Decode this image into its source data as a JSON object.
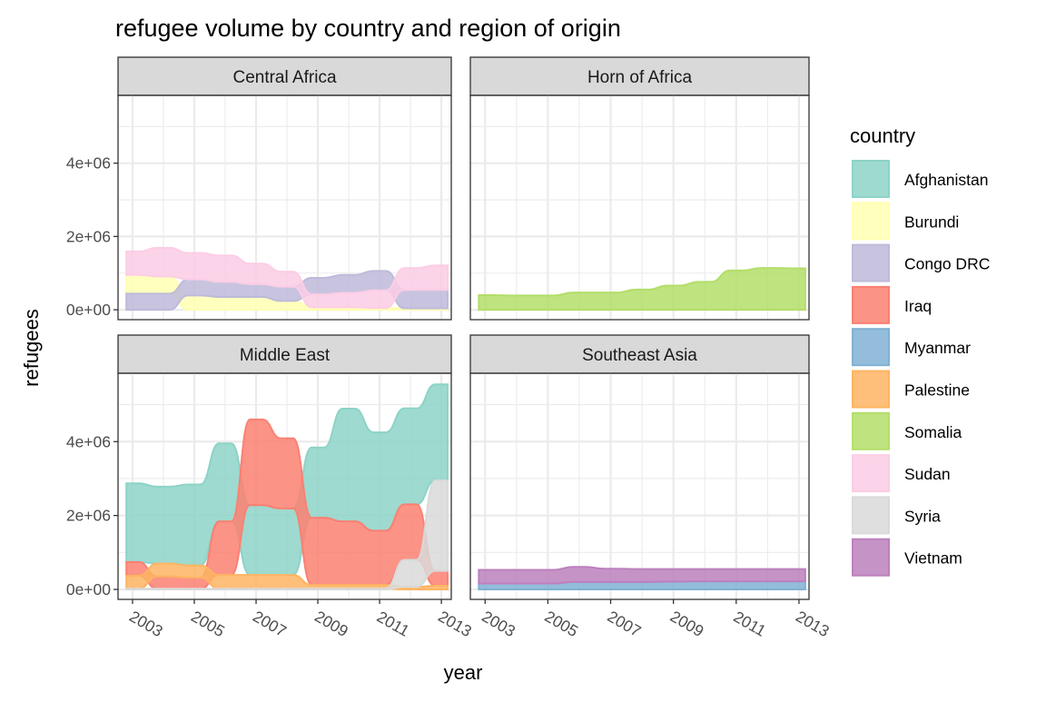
{
  "chart_data": {
    "type": "area",
    "subtype": "alluvial stream",
    "title": "refugee volume by country and region of origin",
    "xlabel": "year",
    "ylabel": "refugees",
    "x": [
      2003,
      2004,
      2005,
      2006,
      2007,
      2008,
      2009,
      2010,
      2011,
      2012,
      2013
    ],
    "x_ticks": [
      "2003",
      "2005",
      "2007",
      "2009",
      "2011",
      "2013"
    ],
    "y_ticks": [
      "0e+00",
      "2e+06",
      "4e+06"
    ],
    "y_tick_values": [
      0,
      2000000,
      4000000
    ],
    "ylim": [
      -270000,
      5850000
    ],
    "xlim": [
      2002.53,
      2013.32
    ],
    "grid": true,
    "legend": {
      "title": "country",
      "position": "right",
      "entries": [
        {
          "name": "Afghanistan",
          "color": "#8dd3c7"
        },
        {
          "name": "Burundi",
          "color": "#ffffb3"
        },
        {
          "name": "Congo DRC",
          "color": "#bebada"
        },
        {
          "name": "Iraq",
          "color": "#fb8072"
        },
        {
          "name": "Myanmar",
          "color": "#80b1d3"
        },
        {
          "name": "Palestine",
          "color": "#fdb462"
        },
        {
          "name": "Somalia",
          "color": "#b3de69"
        },
        {
          "name": "Sudan",
          "color": "#fccde5"
        },
        {
          "name": "Syria",
          "color": "#d9d9d9"
        },
        {
          "name": "Vietnam",
          "color": "#bc80bd"
        }
      ]
    },
    "facets": [
      {
        "label": "Central Africa",
        "series": [
          {
            "name": "Burundi",
            "values": [
              510000,
              470000,
              390000,
              350000,
              350000,
              240000,
              70000,
              70000,
              50000,
              40000,
              40000
            ]
          },
          {
            "name": "Congo DRC",
            "values": [
              440000,
              440000,
              440000,
              410000,
              350000,
              390000,
              450000,
              490000,
              530000,
              500000,
              500000
            ]
          },
          {
            "name": "Sudan",
            "values": [
              640000,
              780000,
              720000,
              720000,
              560000,
              410000,
              350000,
              390000,
              480000,
              600000,
              670000
            ]
          }
        ]
      },
      {
        "label": "Horn of Africa",
        "series": [
          {
            "name": "Somalia",
            "values": [
              400000,
              390000,
              390000,
              470000,
              470000,
              550000,
              660000,
              760000,
              1070000,
              1140000,
              1130000
            ]
          }
        ]
      },
      {
        "label": "Middle East",
        "series": [
          {
            "name": "Afghanistan",
            "values": [
              2130000,
              2080000,
              2190000,
              2110000,
              1890000,
              1800000,
              1900000,
              3050000,
              2660000,
              2600000,
              2600000
            ]
          },
          {
            "name": "Iraq",
            "values": [
              370000,
              330000,
              300000,
              1450000,
              2320000,
              1900000,
              1820000,
              1720000,
              1470000,
              1500000,
              400000
            ]
          },
          {
            "name": "Palestine",
            "values": [
              350000,
              350000,
              330000,
              370000,
              370000,
              370000,
              100000,
              100000,
              100000,
              70000,
              100000
            ]
          },
          {
            "name": "Syria",
            "values": [
              20000,
              20000,
              20000,
              20000,
              20000,
              20000,
              20000,
              20000,
              20000,
              730000,
              2450000
            ]
          }
        ]
      },
      {
        "label": "Southeast Asia",
        "series": [
          {
            "name": "Myanmar",
            "values": [
              160000,
              160000,
              160000,
              200000,
              200000,
              200000,
              210000,
              220000,
              220000,
              220000,
              220000
            ]
          },
          {
            "name": "Vietnam",
            "values": [
              370000,
              370000,
              370000,
              410000,
              360000,
              350000,
              340000,
              330000,
              330000,
              330000,
              330000
            ]
          }
        ]
      }
    ]
  }
}
